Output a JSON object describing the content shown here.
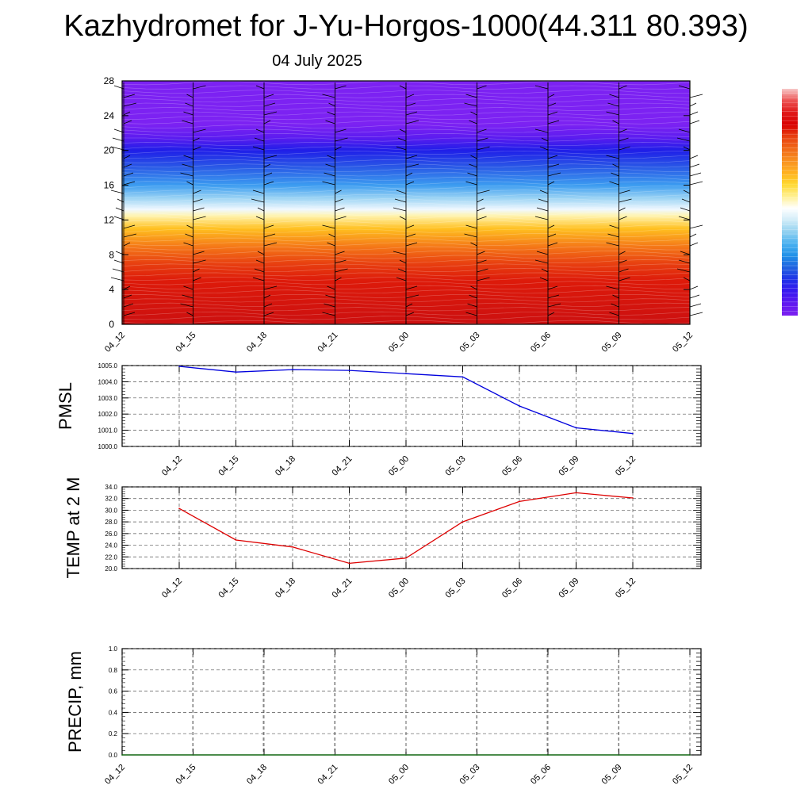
{
  "header": {
    "title": "Kazhydromet for J-Yu-Horgos-1000(44.311 80.393)",
    "subtitle": "04 July 2025"
  },
  "chart_data": [
    {
      "type": "heatmap",
      "name": "time-height-section",
      "x_ticks": [
        "04_12",
        "04_15",
        "04_18",
        "04_21",
        "05_00",
        "05_03",
        "05_06",
        "05_09",
        "05_12"
      ],
      "y_ticks": [
        0,
        4,
        8,
        12,
        16,
        20,
        24,
        28
      ],
      "ylim": [
        0,
        28
      ],
      "colorbar_colors": [
        "#f7c8c8",
        "#ec5050",
        "#e01818",
        "#d80000",
        "#e84010",
        "#f06818",
        "#f89020",
        "#ffb020",
        "#ffd830",
        "#fff090",
        "#ffffff",
        "#d0ecf8",
        "#90d0f0",
        "#48b0f0",
        "#2090e8",
        "#2060e0",
        "#2030e8",
        "#3818f0",
        "#6018f0",
        "#7c20f0"
      ],
      "field_bands": [
        {
          "y": 0,
          "color": "#cc1010"
        },
        {
          "y": 5,
          "color": "#dd1a0a"
        },
        {
          "y": 7,
          "color": "#e84010"
        },
        {
          "y": 9,
          "color": "#f57a18"
        },
        {
          "y": 11,
          "color": "#ffc020"
        },
        {
          "y": 12.5,
          "color": "#fff4b0"
        },
        {
          "y": 13.2,
          "color": "#f0f8ff"
        },
        {
          "y": 14.5,
          "color": "#9cd4f4"
        },
        {
          "y": 16,
          "color": "#3c9cf0"
        },
        {
          "y": 18,
          "color": "#2a5ce6"
        },
        {
          "y": 20,
          "color": "#1f1ee8"
        },
        {
          "y": 21.5,
          "color": "#5d1cf0"
        },
        {
          "y": 23,
          "color": "#7c22f2"
        },
        {
          "y": 28,
          "color": "#7c22f2"
        }
      ]
    },
    {
      "type": "line",
      "name": "pmsl",
      "ylabel": "PMSL",
      "categories": [
        "04_12",
        "04_15",
        "04_18",
        "04_21",
        "05_00",
        "05_03",
        "05_06",
        "05_09",
        "05_12"
      ],
      "values": [
        1004.95,
        1004.6,
        1004.75,
        1004.7,
        1004.5,
        1004.3,
        1002.5,
        1001.15,
        1000.8
      ],
      "ylim": [
        1000.0,
        1005.0
      ],
      "y_ticks": [
        "1000.0",
        "1001.0",
        "1002.0",
        "1003.0",
        "1004.0",
        "1005.0"
      ],
      "color": "#0000dd"
    },
    {
      "type": "line",
      "name": "temp-2m",
      "ylabel": "TEMP at 2 M",
      "categories": [
        "04_12",
        "04_15",
        "04_18",
        "04_21",
        "05_00",
        "05_03",
        "05_06",
        "05_09",
        "05_12"
      ],
      "values": [
        30.3,
        24.9,
        23.7,
        20.9,
        21.8,
        28.0,
        31.5,
        33.0,
        32.1
      ],
      "ylim": [
        20.0,
        34.0
      ],
      "y_ticks": [
        "20.0",
        "22.0",
        "24.0",
        "26.0",
        "28.0",
        "30.0",
        "32.0",
        "34.0"
      ],
      "color": "#dd0000"
    },
    {
      "type": "line",
      "name": "precip",
      "ylabel": "PRECIP, mm",
      "categories": [
        "04_12",
        "04_15",
        "04_18",
        "04_21",
        "05_00",
        "05_03",
        "05_06",
        "05_09",
        "05_12"
      ],
      "values": [
        0,
        0,
        0,
        0,
        0,
        0,
        0,
        0,
        0
      ],
      "ylim": [
        0.0,
        1.0
      ],
      "y_ticks": [
        "0.0",
        "0.2",
        "0.4",
        "0.6",
        "0.8",
        "1.0"
      ],
      "color": "#006600"
    }
  ]
}
